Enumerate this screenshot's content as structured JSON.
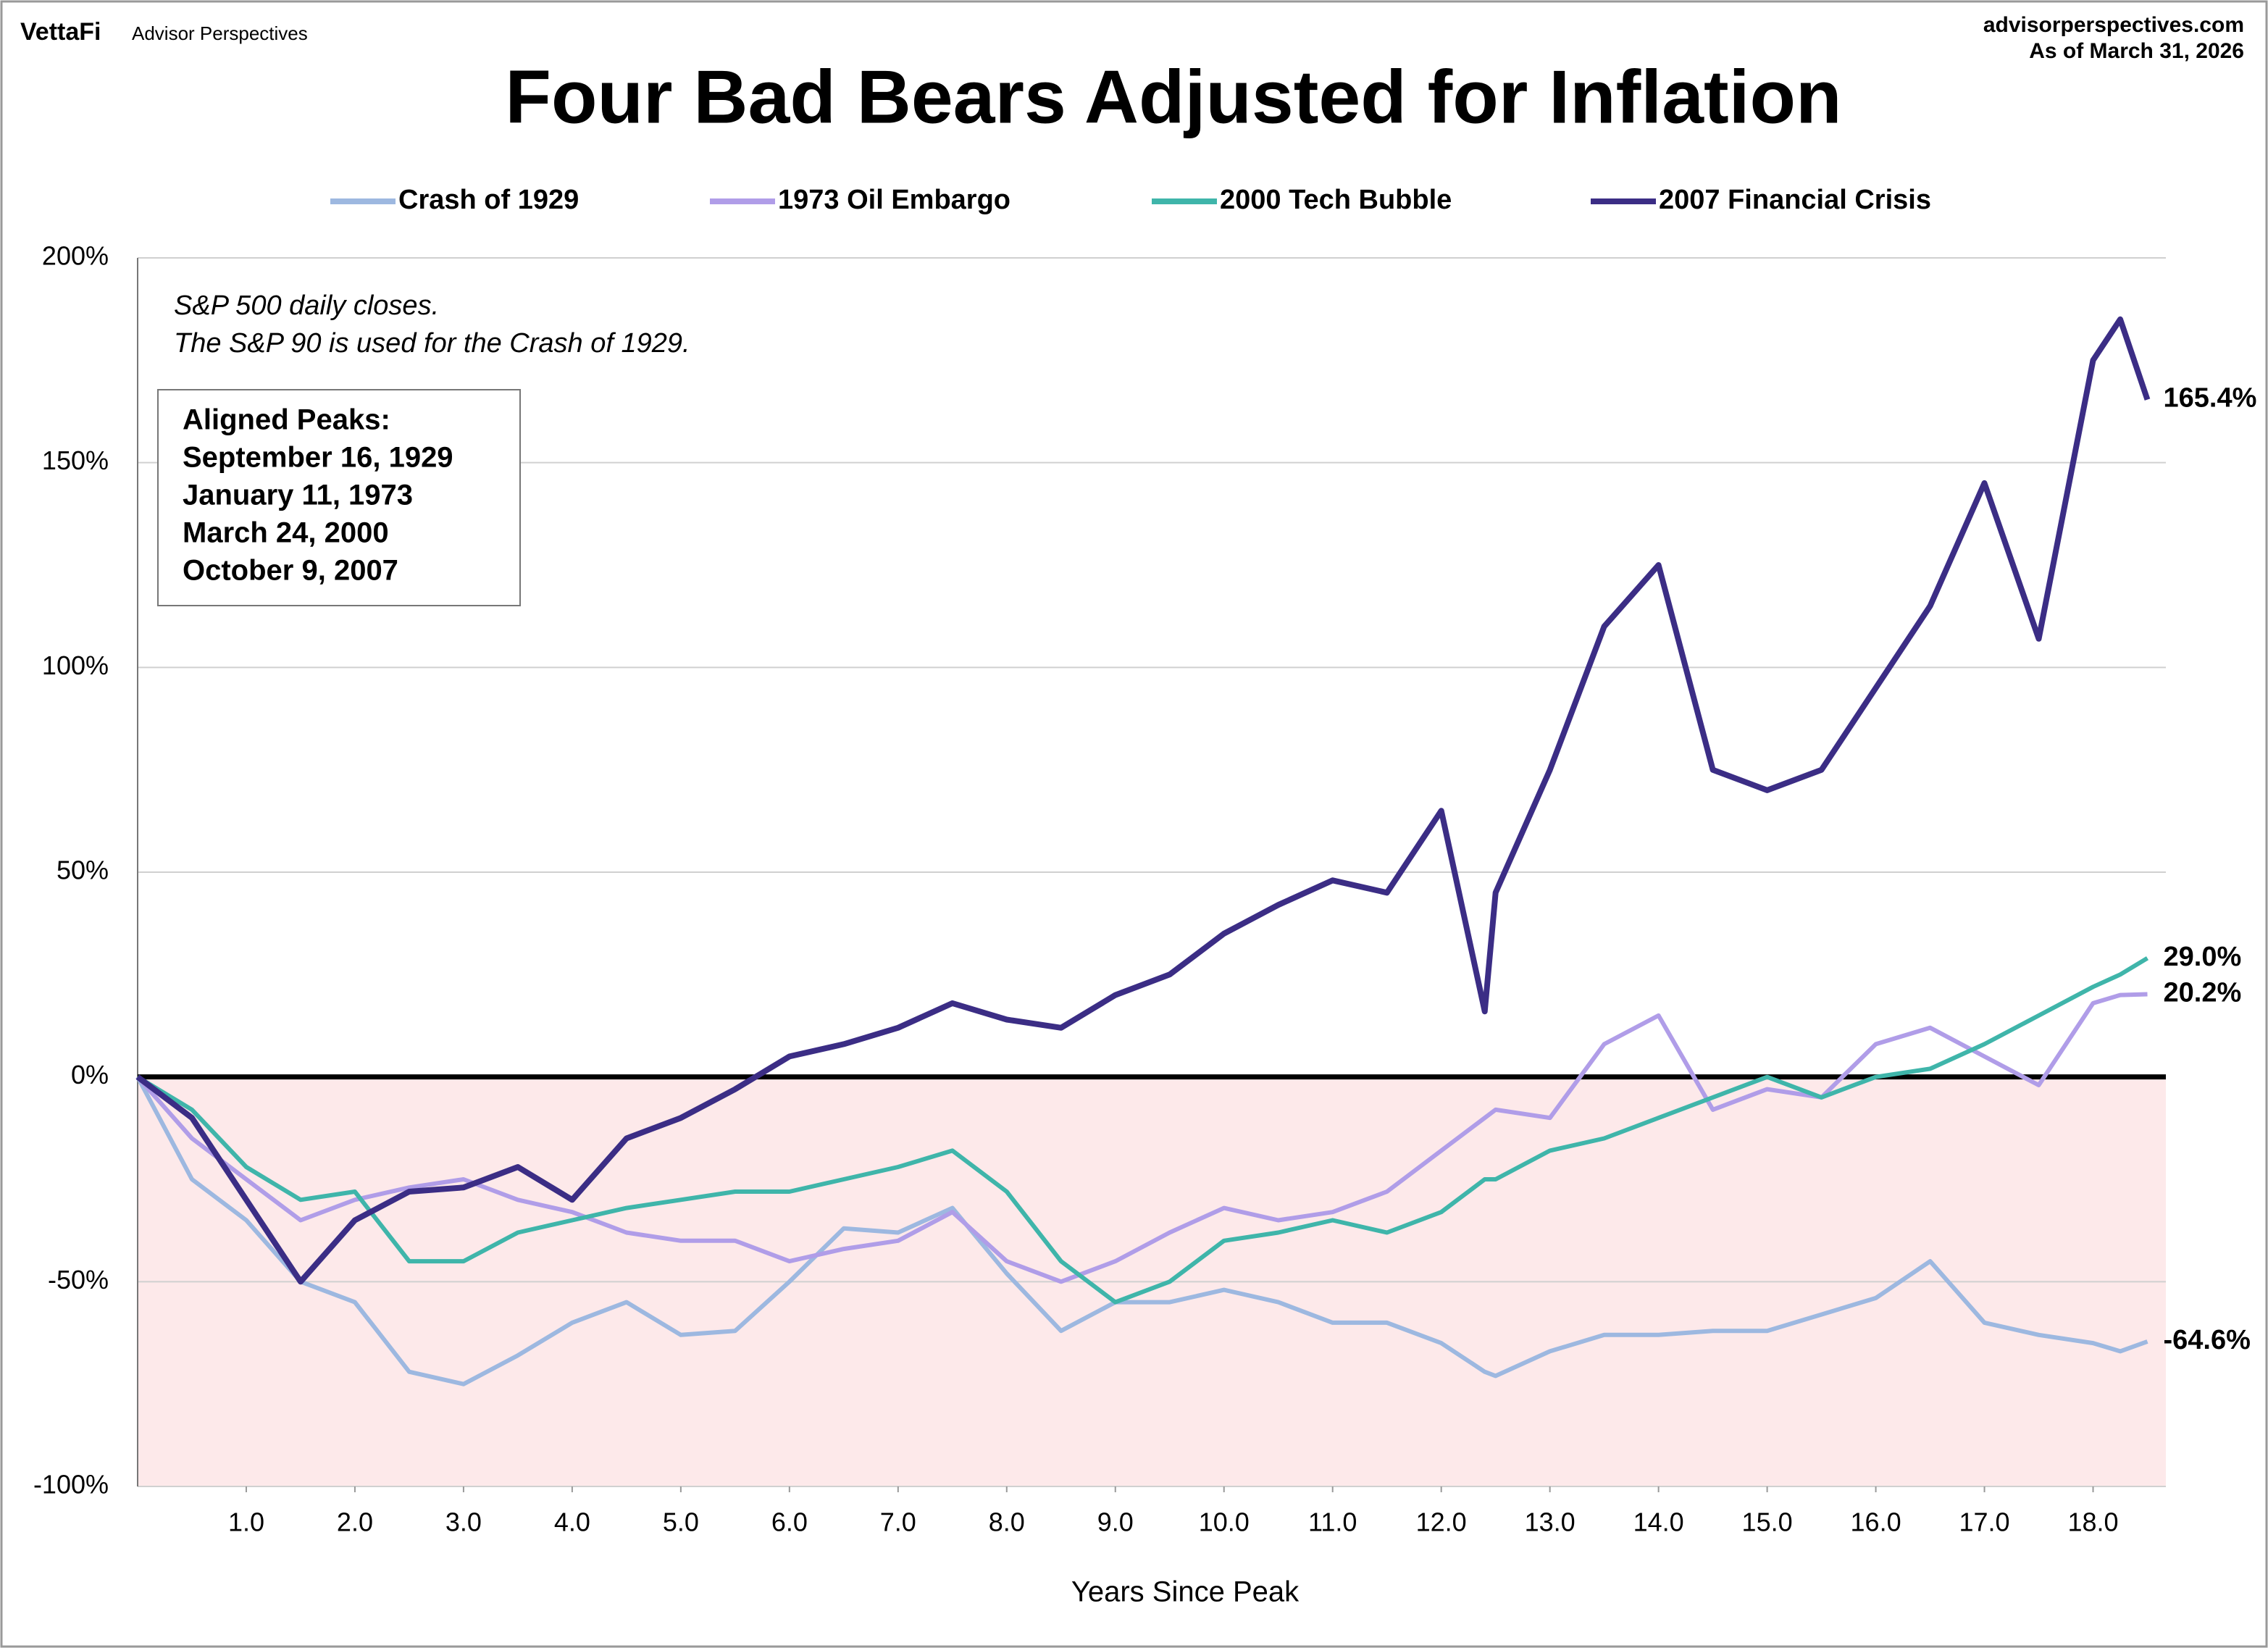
{
  "header": {
    "brand": "VettaFi",
    "brand_sub": "Advisor Perspectives",
    "site": "advisorperspectives.com",
    "as_of": "As of March 31, 2026"
  },
  "chart_data": {
    "type": "line",
    "title": "Four Bad Bears Adjusted for Inflation",
    "x_label": "Years Since Peak",
    "annotation": [
      "S&P 500 daily closes.",
      "The S&P 90 is used for the Crash of 1929."
    ],
    "peaks_title": "Aligned Peaks:",
    "peaks": [
      {
        "label": "September 16, 1929",
        "color": "#9db8e0"
      },
      {
        "label": "January 11, 1973",
        "color": "#b09de8"
      },
      {
        "label": "March 24, 2000",
        "color": "#2aa89d"
      },
      {
        "label": "October 9, 2007",
        "color": "#3b2d85"
      }
    ],
    "x": [
      0,
      0.5,
      1,
      1.5,
      2,
      2.5,
      3,
      3.5,
      4,
      4.5,
      5,
      5.5,
      6,
      6.5,
      7,
      7.5,
      8,
      8.5,
      9,
      9.5,
      10,
      10.5,
      11,
      11.5,
      12,
      12.4,
      12.5,
      13,
      13.5,
      14,
      14.5,
      15,
      15.5,
      16,
      16.5,
      17,
      17.5,
      18,
      18.25,
      18.5
    ],
    "series": [
      {
        "name": "Crash of 1929",
        "color": "#9db8e0",
        "end_label": "-64.6%",
        "values": [
          0,
          -25,
          -35,
          -50,
          -55,
          -72,
          -75,
          -68,
          -60,
          -55,
          -63,
          -62,
          -50,
          -37,
          -38,
          -32,
          -48,
          -62,
          -55,
          -55,
          -52,
          -55,
          -60,
          -60,
          -65,
          -72,
          -73,
          -67,
          -63,
          -63,
          -62,
          -62,
          -58,
          -54,
          -45,
          -60,
          -63,
          -65,
          -67,
          -64.6
        ]
      },
      {
        "name": "1973 Oil Embargo",
        "color": "#b09de8",
        "end_label": "20.2%",
        "values": [
          0,
          -15,
          -25,
          -35,
          -30,
          -27,
          -25,
          -30,
          -33,
          -38,
          -40,
          -40,
          -45,
          -42,
          -40,
          -33,
          -45,
          -50,
          -45,
          -38,
          -32,
          -35,
          -33,
          -28,
          -18,
          -10,
          -8,
          -10,
          8,
          15,
          -8,
          -3,
          -5,
          8,
          12,
          5,
          -2,
          18,
          20,
          20.2
        ]
      },
      {
        "name": "2000 Tech Bubble",
        "color": "#3fb5aa",
        "end_label": "29.0%",
        "values": [
          0,
          -8,
          -22,
          -30,
          -28,
          -45,
          -45,
          -38,
          -35,
          -32,
          -30,
          -28,
          -28,
          -25,
          -22,
          -18,
          -28,
          -45,
          -55,
          -50,
          -40,
          -38,
          -35,
          -38,
          -33,
          -25,
          -25,
          -18,
          -15,
          -10,
          -5,
          0,
          -5,
          0,
          2,
          8,
          15,
          22,
          25,
          29
        ]
      },
      {
        "name": "2007 Financial Crisis",
        "color": "#3b2d85",
        "end_label": "165.4%",
        "values": [
          0,
          -10,
          -30,
          -50,
          -35,
          -28,
          -27,
          -22,
          -30,
          -15,
          -10,
          -3,
          5,
          8,
          12,
          18,
          14,
          12,
          20,
          25,
          35,
          42,
          48,
          45,
          65,
          16,
          45,
          75,
          110,
          125,
          75,
          70,
          75,
          95,
          115,
          145,
          107,
          175,
          185,
          165.4
        ]
      }
    ],
    "xlim": [
      0,
      18.67
    ],
    "ylim": [
      -100,
      200
    ],
    "xticks": [
      {
        "value": 1,
        "label": "1.0"
      },
      {
        "value": 2,
        "label": "2.0"
      },
      {
        "value": 3,
        "label": "3.0"
      },
      {
        "value": 4,
        "label": "4.0"
      },
      {
        "value": 5,
        "label": "5.0"
      },
      {
        "value": 6,
        "label": "6.0"
      },
      {
        "value": 7,
        "label": "7.0"
      },
      {
        "value": 8,
        "label": "8.0"
      },
      {
        "value": 9,
        "label": "9.0"
      },
      {
        "value": 10,
        "label": "10.0"
      },
      {
        "value": 11,
        "label": "11.0"
      },
      {
        "value": 12,
        "label": "12.0"
      },
      {
        "value": 13,
        "label": "13.0"
      },
      {
        "value": 14,
        "label": "14.0"
      },
      {
        "value": 15,
        "label": "15.0"
      },
      {
        "value": 16,
        "label": "16.0"
      },
      {
        "value": 17,
        "label": "17.0"
      },
      {
        "value": 18,
        "label": "18.0"
      }
    ],
    "yticks": [
      {
        "value": -100,
        "label": "-100%"
      },
      {
        "value": -50,
        "label": "-50%"
      },
      {
        "value": 0,
        "label": "0%"
      },
      {
        "value": 50,
        "label": "50%"
      },
      {
        "value": 100,
        "label": "100%"
      },
      {
        "value": 150,
        "label": "150%"
      },
      {
        "value": 200,
        "label": "200%"
      }
    ],
    "grid": true,
    "negative_fill": "#fde9ea"
  }
}
